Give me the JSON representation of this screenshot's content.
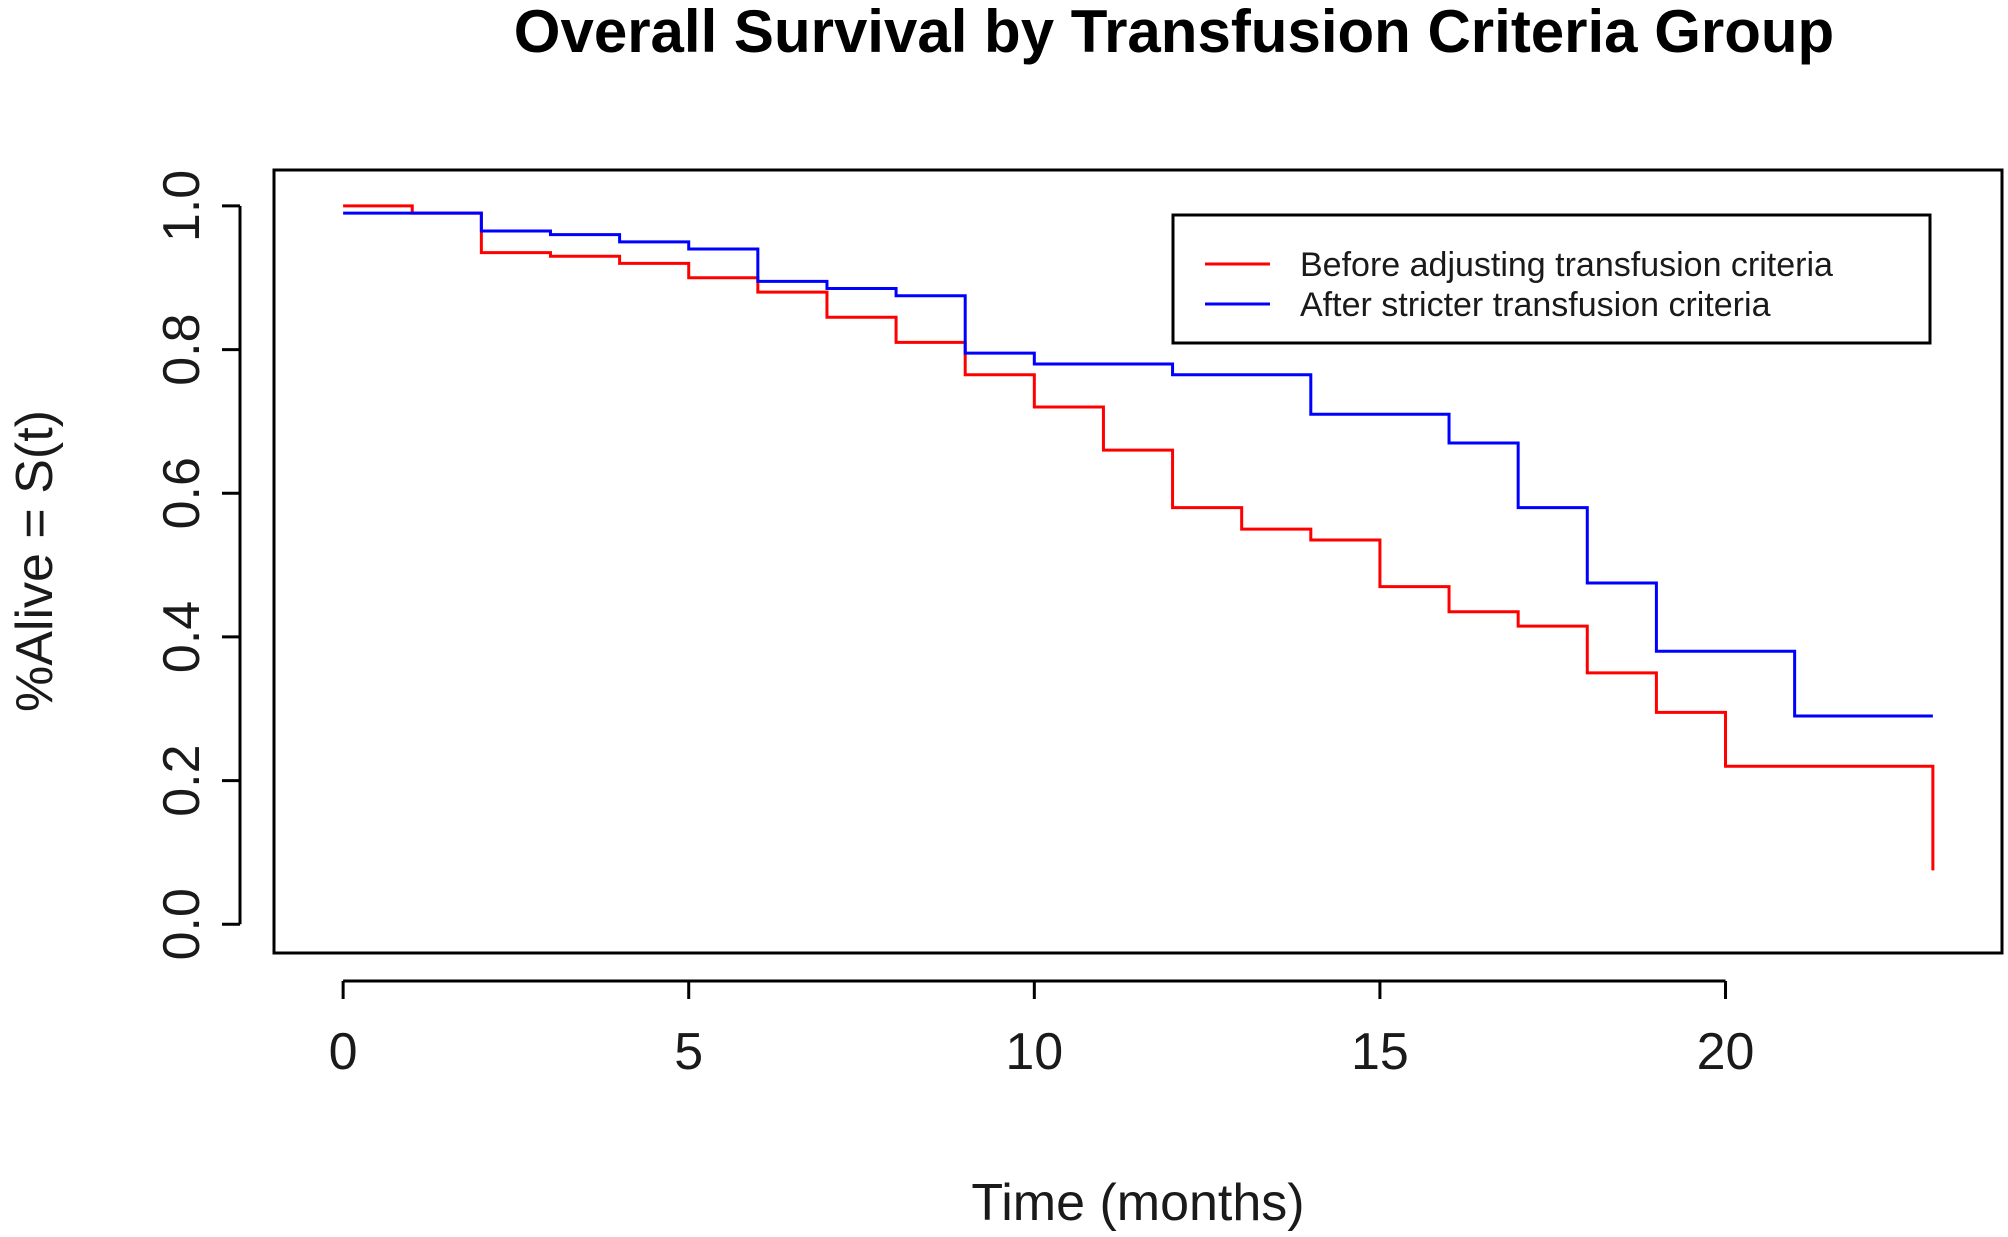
{
  "chart_data": {
    "type": "line",
    "step": true,
    "title": "Overall Survival by Transfusion Criteria Group",
    "xlabel": "Time (months)",
    "ylabel": "%Alive = S(t)",
    "xlim": [
      -1,
      24
    ],
    "ylim": [
      -0.04,
      1.05
    ],
    "xticks": [
      0,
      5,
      10,
      15,
      20
    ],
    "xtick_labels": [
      "0",
      "5",
      "10",
      "15",
      "20"
    ],
    "yticks": [
      0.0,
      0.2,
      0.4,
      0.6,
      0.8,
      1.0
    ],
    "ytick_labels": [
      "0.0",
      "0.2",
      "0.4",
      "0.6",
      "0.8",
      "1.0"
    ],
    "grid": false,
    "legend_position": "top-right",
    "series": [
      {
        "name": "Before adjusting transfusion criteria",
        "color": "#ff0000",
        "x": [
          0,
          1,
          2,
          3,
          4,
          5,
          6,
          7,
          8,
          9,
          10,
          11,
          12,
          13,
          14,
          15,
          16,
          17,
          18,
          19,
          20,
          23,
          23
        ],
        "y": [
          1.0,
          0.99,
          0.935,
          0.93,
          0.92,
          0.9,
          0.88,
          0.845,
          0.81,
          0.765,
          0.72,
          0.66,
          0.58,
          0.55,
          0.535,
          0.47,
          0.435,
          0.415,
          0.35,
          0.295,
          0.22,
          0.22,
          0.075
        ]
      },
      {
        "name": "After stricter transfusion criteria",
        "color": "#0000ff",
        "x": [
          0,
          2,
          3,
          4,
          5,
          6,
          7,
          8,
          9,
          10,
          12,
          14,
          16,
          17,
          18,
          19,
          21,
          23
        ],
        "y": [
          0.99,
          0.965,
          0.96,
          0.95,
          0.94,
          0.895,
          0.885,
          0.875,
          0.795,
          0.78,
          0.765,
          0.71,
          0.67,
          0.58,
          0.475,
          0.38,
          0.29,
          0.29
        ]
      }
    ]
  }
}
